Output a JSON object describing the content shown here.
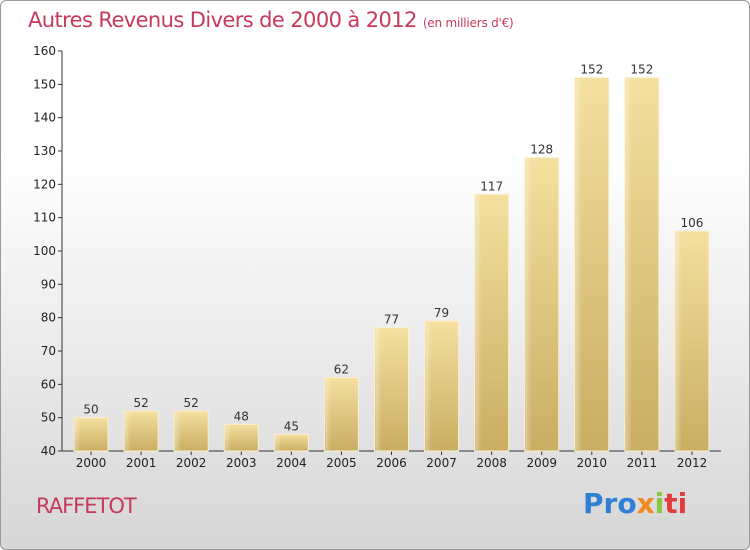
{
  "header": {
    "title": "Autres Revenus Divers de 2000 à 2012",
    "unit": "(en milliers d'€)"
  },
  "footer": {
    "commune": "RAFFETOT",
    "logo_parts": [
      "Pro",
      "x",
      "i",
      "ti"
    ]
  },
  "colors": {
    "title": "#c8395a",
    "bar_light": "#f3dc9a",
    "bar_dark": "#c8ab5e",
    "logo": [
      "#2f7fd3",
      "#f08a1c",
      "#8cc63f",
      "#e23b3b"
    ]
  },
  "chart_data": {
    "type": "bar",
    "title": "Autres Revenus Divers de 2000 à 2012",
    "subtitle": "(en milliers d'€)",
    "xlabel": "",
    "ylabel": "",
    "categories": [
      "2000",
      "2001",
      "2002",
      "2003",
      "2004",
      "2005",
      "2006",
      "2007",
      "2008",
      "2009",
      "2010",
      "2011",
      "2012"
    ],
    "values": [
      50,
      52,
      52,
      48,
      45,
      62,
      77,
      79,
      117,
      128,
      152,
      152,
      106
    ],
    "ylim": [
      40,
      160
    ],
    "yticks": [
      40,
      50,
      60,
      70,
      80,
      90,
      100,
      110,
      120,
      130,
      140,
      150,
      160
    ],
    "grid": false,
    "data_labels": true
  }
}
